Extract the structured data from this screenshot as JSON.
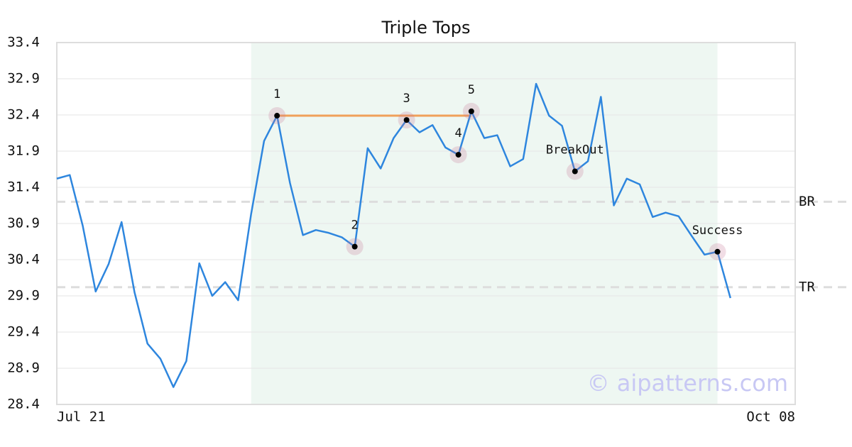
{
  "chart_data": {
    "type": "line",
    "title": "Triple Tops",
    "x": [
      0,
      1,
      2,
      3,
      4,
      5,
      6,
      7,
      8,
      9,
      10,
      11,
      12,
      13,
      14,
      15,
      16,
      17,
      18,
      19,
      20,
      21,
      22,
      23,
      24,
      25,
      26,
      27,
      28,
      29,
      30,
      31,
      32,
      33,
      34,
      35,
      36,
      37,
      38,
      39,
      40,
      41,
      42,
      43,
      44,
      45,
      46,
      47,
      48,
      49,
      50,
      51,
      52
    ],
    "values": [
      31.52,
      31.57,
      30.87,
      29.96,
      30.34,
      30.92,
      29.95,
      29.24,
      29.03,
      28.64,
      29.0,
      30.35,
      29.9,
      30.09,
      29.84,
      31.03,
      32.04,
      32.39,
      31.46,
      30.74,
      30.81,
      30.77,
      30.71,
      30.58,
      31.94,
      31.66,
      32.08,
      32.33,
      32.16,
      32.26,
      31.95,
      31.85,
      32.45,
      32.08,
      32.12,
      31.69,
      31.79,
      32.83,
      32.39,
      32.25,
      31.62,
      31.76,
      32.65,
      31.15,
      31.52,
      31.44,
      30.99,
      31.05,
      31.0,
      30.73,
      30.47,
      30.51,
      29.87
    ],
    "color": "#2e86de",
    "xlim": [
      0,
      57
    ],
    "xticks": [
      {
        "value": 0,
        "label": "Jul 21"
      },
      {
        "value": 57,
        "label": "Oct 08"
      }
    ],
    "ylim": [
      28.4,
      33.4
    ],
    "yticks": [
      28.4,
      28.9,
      29.4,
      29.9,
      30.4,
      30.9,
      31.4,
      31.9,
      32.4,
      32.9,
      33.4
    ],
    "grid": true,
    "shaded_range": [
      15,
      51
    ],
    "shaded_color": "#eef7f2",
    "levels": [
      {
        "label": "BR",
        "value": 31.2
      },
      {
        "label": "TR",
        "value": 30.02
      }
    ],
    "neckline": {
      "x": [
        17,
        32
      ],
      "y": [
        32.39,
        32.39
      ],
      "color": "#f0a05a"
    },
    "pattern_points": [
      {
        "label": "1",
        "x": 17,
        "y": 32.39
      },
      {
        "label": "2",
        "x": 23,
        "y": 30.58
      },
      {
        "label": "3",
        "x": 27,
        "y": 32.33
      },
      {
        "label": "4",
        "x": 31,
        "y": 31.85
      },
      {
        "label": "5",
        "x": 32,
        "y": 32.45
      },
      {
        "label": "BreakOut",
        "x": 40,
        "y": 31.62
      },
      {
        "label": "Success",
        "x": 51,
        "y": 30.51
      }
    ],
    "watermark": "© aipatterns.com"
  }
}
